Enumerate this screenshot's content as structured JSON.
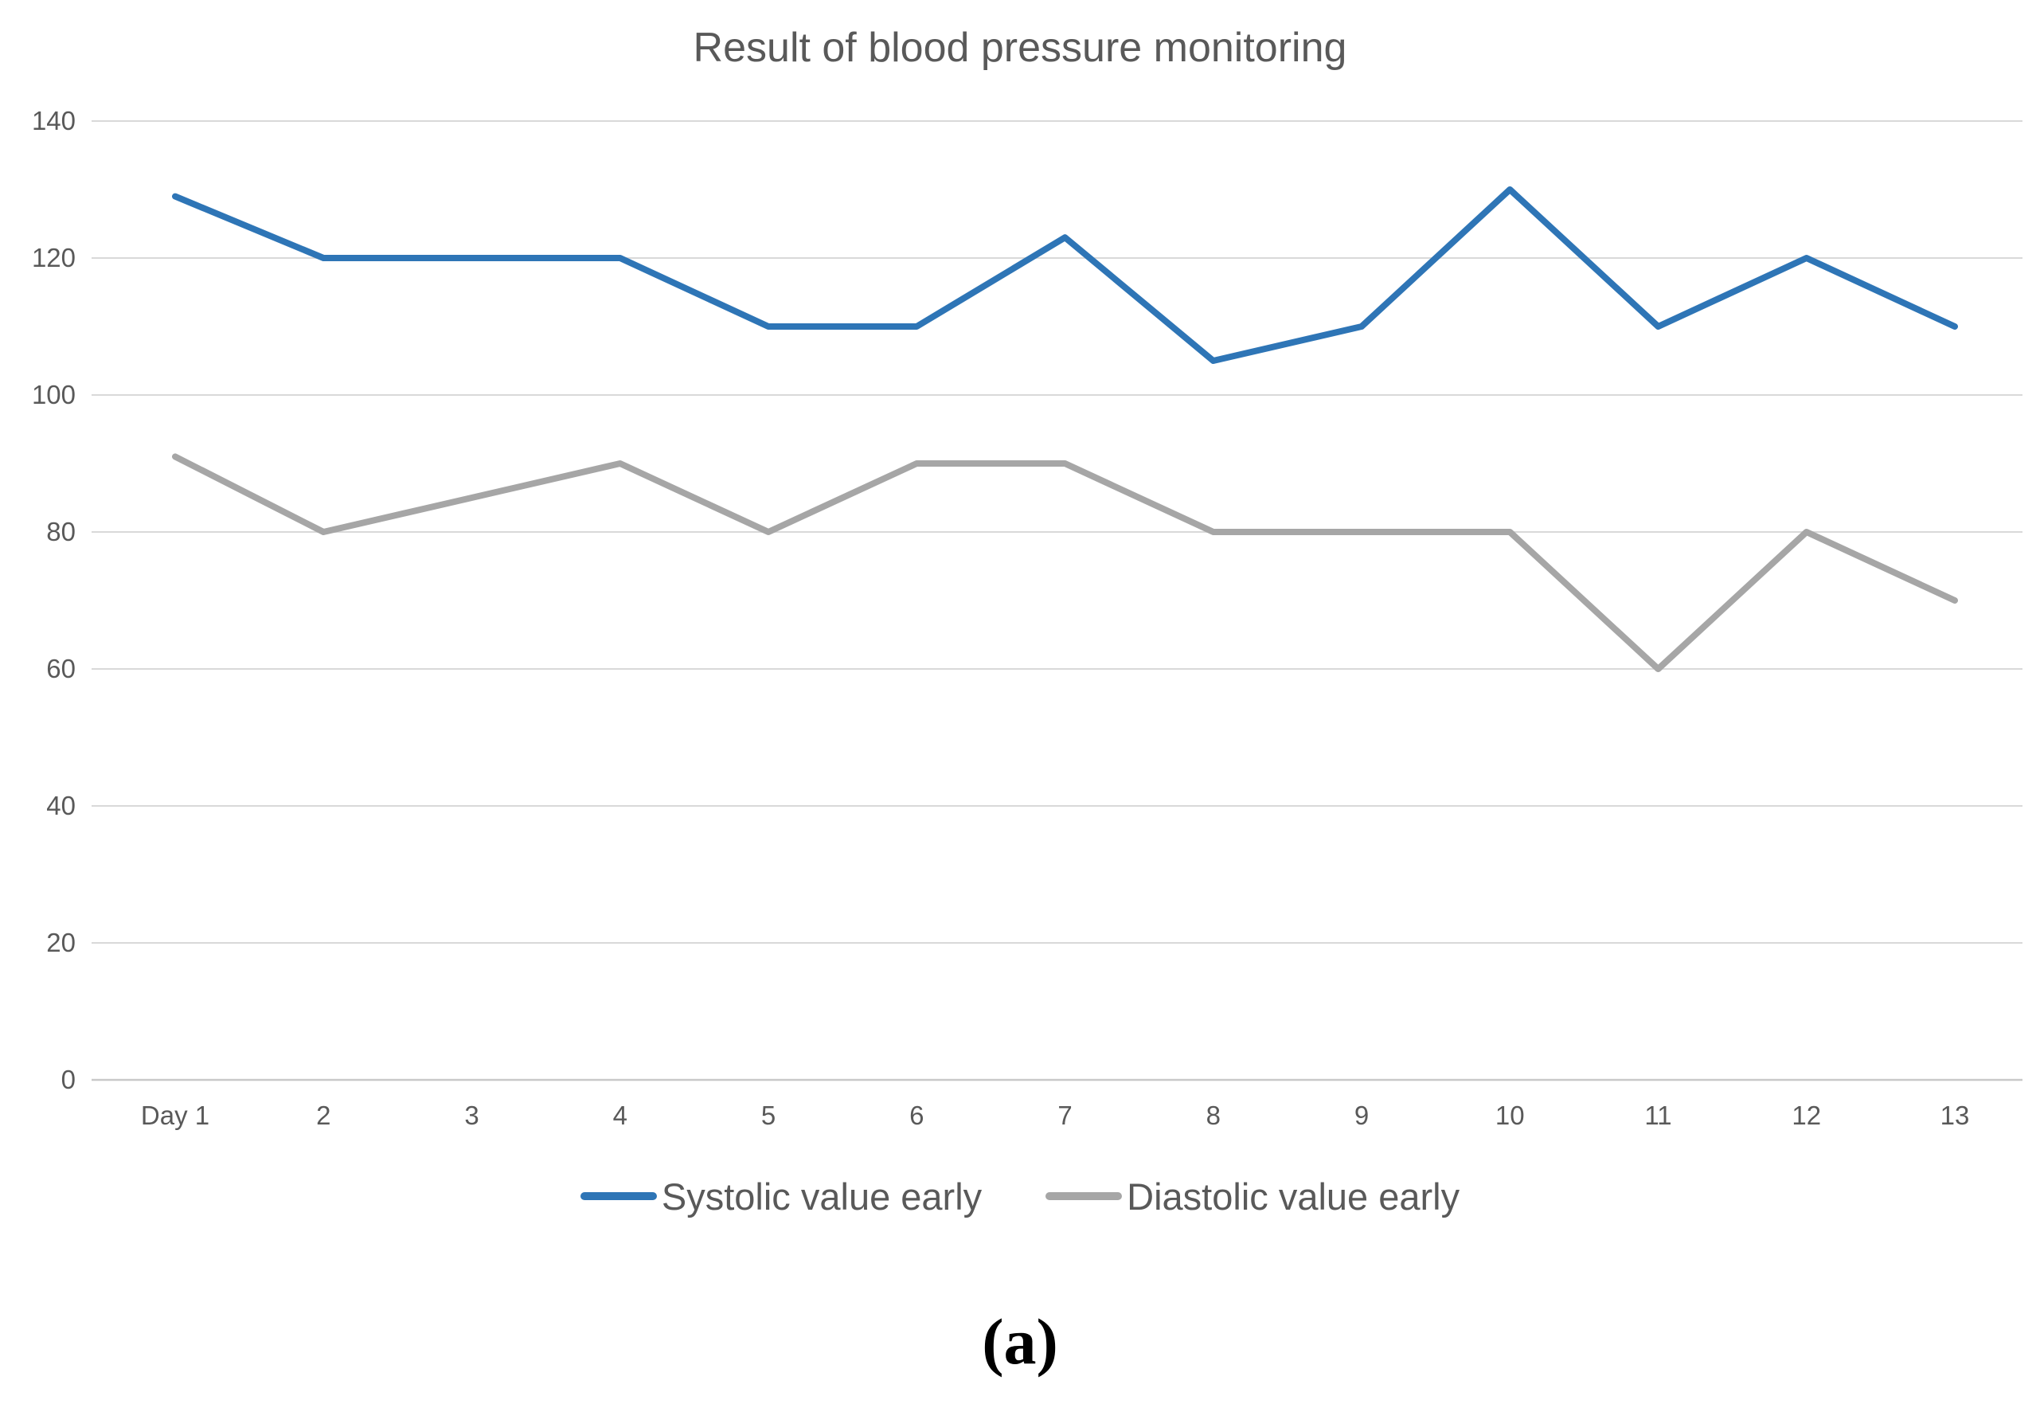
{
  "title": "Result of blood pressure monitoring",
  "caption": "(a)",
  "colors": {
    "systolic": "#2E75B6",
    "diastolic": "#A6A6A6",
    "gridline": "#D9D9D9",
    "axis_line": "#C9C9C9",
    "text": "#595959"
  },
  "legend": {
    "items": [
      {
        "label": "Systolic value early",
        "color": "#2E75B6"
      },
      {
        "label": "Diastolic value early",
        "color": "#A6A6A6"
      }
    ]
  },
  "chart_data": {
    "type": "line",
    "title": "Result of blood pressure monitoring",
    "xlabel": "",
    "ylabel": "",
    "categories": [
      "Day 1",
      "2",
      "3",
      "4",
      "5",
      "6",
      "7",
      "8",
      "9",
      "10",
      "11",
      "12",
      "13"
    ],
    "series": [
      {
        "name": "Systolic value early",
        "color": "#2E75B6",
        "values": [
          129,
          120,
          120,
          120,
          110,
          110,
          123,
          105,
          110,
          130,
          110,
          120,
          110
        ]
      },
      {
        "name": "Diastolic value early",
        "color": "#A6A6A6",
        "values": [
          91,
          80,
          85,
          90,
          80,
          90,
          90,
          80,
          80,
          80,
          60,
          80,
          70
        ]
      }
    ],
    "ylim": [
      0,
      140
    ],
    "yticks": [
      0,
      20,
      40,
      60,
      80,
      100,
      120,
      140
    ],
    "grid": true,
    "legend_position": "bottom"
  }
}
